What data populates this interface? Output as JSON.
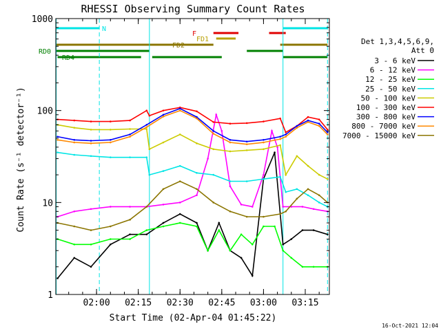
{
  "chart_data": {
    "type": "line",
    "title": "RHESSI Observing Summary Count Rates",
    "xlabel": "Start Time (02-Apr-04 01:45:22)",
    "ylabel": "Count Rate (s⁻¹ detector⁻¹)",
    "y_scale": "log",
    "ylim": [
      1,
      1000
    ],
    "xlim": [
      "01:45:22",
      "03:23:40"
    ],
    "x_ticks": [
      "02:00",
      "02:15",
      "02:30",
      "02:45",
      "03:00",
      "03:15"
    ],
    "y_ticks": [
      "1",
      "10",
      "100",
      "1000"
    ],
    "detector_info": [
      "Det 1,3,4,5,6,9,",
      "Att 0"
    ],
    "footer_date": "16-Oct-2021 12:04",
    "legend_position": "right",
    "flags": [
      {
        "name": "N",
        "color": "#00e5e5",
        "segments": [
          [
            "01:45:22",
            "02:01:00"
          ],
          [
            "03:07:00",
            "03:23:00"
          ]
        ]
      },
      {
        "name": "F",
        "color": "#e00000",
        "segments": [
          [
            "02:42:00",
            "02:51:00"
          ],
          [
            "03:02:00",
            "03:08:00"
          ]
        ]
      },
      {
        "name": "FD1",
        "color": "#b8a000",
        "segments": [
          [
            "02:43:00",
            "02:50:00"
          ]
        ]
      },
      {
        "name": "FD2",
        "color": "#8b7500",
        "segments": [
          [
            "01:45:22",
            "02:42:00"
          ],
          [
            "03:06:00",
            "03:23:00"
          ]
        ]
      },
      {
        "name": "RD0",
        "color": "#008000",
        "segments": [
          [
            "01:45:22",
            "02:19:00"
          ],
          [
            "02:54:00",
            "03:07:00"
          ]
        ]
      },
      {
        "name": "RD4",
        "color": "#008000",
        "segments": [
          [
            "01:46:00",
            "02:16:00"
          ],
          [
            "02:20:00",
            "02:45:00"
          ],
          [
            "03:07:00",
            "03:23:00"
          ]
        ]
      }
    ],
    "series": [
      {
        "name": "3 - 6 keV",
        "color": "#000000",
        "x": [
          "01:46",
          "01:52",
          "01:58",
          "02:05",
          "02:12",
          "02:18",
          "02:24",
          "02:30",
          "02:36",
          "02:40",
          "02:44",
          "02:48",
          "02:52",
          "02:56",
          "03:00",
          "03:04",
          "03:07",
          "03:10",
          "03:14",
          "03:18",
          "03:23"
        ],
        "values": [
          1.5,
          2.5,
          2.0,
          3.5,
          4.5,
          4.5,
          6.0,
          7.5,
          6.0,
          3.0,
          6.0,
          3.0,
          2.5,
          1.6,
          18,
          35,
          3.5,
          4.0,
          5.0,
          5.0,
          4.5
        ]
      },
      {
        "name": "6 - 12 keV",
        "color": "#ff00ff",
        "x": [
          "01:46",
          "01:52",
          "01:58",
          "02:05",
          "02:12",
          "02:18",
          "02:24",
          "02:30",
          "02:36",
          "02:40",
          "02:43",
          "02:45",
          "02:48",
          "02:52",
          "02:56",
          "03:00",
          "03:03",
          "03:05",
          "03:07",
          "03:10",
          "03:14",
          "03:18",
          "03:23"
        ],
        "values": [
          7.0,
          8.0,
          8.5,
          9.0,
          9.0,
          9.0,
          9.5,
          10,
          12,
          30,
          90,
          60,
          15,
          9.5,
          9.0,
          20,
          60,
          40,
          9.0,
          9.0,
          9.0,
          8.5,
          8.0
        ]
      },
      {
        "name": "12 - 25 keV",
        "color": "#00ff00",
        "x": [
          "01:46",
          "01:52",
          "01:58",
          "02:05",
          "02:12",
          "02:18",
          "02:24",
          "02:30",
          "02:36",
          "02:40",
          "02:44",
          "02:48",
          "02:52",
          "02:56",
          "03:00",
          "03:04",
          "03:07",
          "03:10",
          "03:14",
          "03:18",
          "03:23"
        ],
        "values": [
          4.0,
          3.5,
          3.5,
          4.0,
          4.0,
          5.0,
          5.5,
          6.0,
          5.5,
          3.0,
          5.0,
          3.0,
          4.5,
          3.5,
          5.5,
          5.5,
          3.0,
          2.5,
          2.0,
          2.0,
          2.0
        ]
      },
      {
        "name": "25 - 50 keV",
        "color": "#00e5e5",
        "x": [
          "01:46",
          "01:52",
          "01:58",
          "02:05",
          "02:12",
          "02:18",
          "02:19",
          "02:24",
          "02:30",
          "02:36",
          "02:42",
          "02:48",
          "02:54",
          "03:00",
          "03:06",
          "03:08",
          "03:12",
          "03:16",
          "03:20",
          "03:23"
        ],
        "values": [
          35,
          33,
          32,
          31,
          31,
          31,
          20,
          22,
          25,
          21,
          20,
          17,
          17,
          18,
          19,
          13,
          14,
          12,
          10,
          9
        ]
      },
      {
        "name": "50 - 100 keV",
        "color": "#cccc00",
        "x": [
          "01:46",
          "01:52",
          "01:58",
          "02:05",
          "02:12",
          "02:18",
          "02:19",
          "02:24",
          "02:30",
          "02:36",
          "02:42",
          "02:48",
          "02:54",
          "03:00",
          "03:06",
          "03:08",
          "03:12",
          "03:16",
          "03:20",
          "03:23"
        ],
        "values": [
          70,
          65,
          62,
          62,
          63,
          63,
          38,
          45,
          55,
          44,
          38,
          36,
          37,
          38,
          42,
          20,
          32,
          25,
          20,
          18
        ]
      },
      {
        "name": "100 - 300 keV",
        "color": "#ff0000",
        "x": [
          "01:46",
          "01:52",
          "01:58",
          "02:05",
          "02:12",
          "02:18",
          "02:19",
          "02:24",
          "02:30",
          "02:36",
          "02:42",
          "02:48",
          "02:54",
          "03:00",
          "03:06",
          "03:08",
          "03:12",
          "03:16",
          "03:20",
          "03:23"
        ],
        "values": [
          80,
          78,
          76,
          76,
          78,
          100,
          88,
          100,
          108,
          98,
          75,
          72,
          73,
          76,
          82,
          58,
          68,
          85,
          80,
          62
        ]
      },
      {
        "name": "300 - 800 keV",
        "color": "#0000ff",
        "x": [
          "01:46",
          "01:52",
          "01:58",
          "02:05",
          "02:12",
          "02:18",
          "02:24",
          "02:30",
          "02:36",
          "02:42",
          "02:48",
          "02:54",
          "03:00",
          "03:06",
          "03:08",
          "03:12",
          "03:16",
          "03:20",
          "03:23"
        ],
        "values": [
          52,
          48,
          47,
          48,
          55,
          70,
          90,
          105,
          85,
          60,
          48,
          46,
          48,
          52,
          55,
          68,
          78,
          72,
          58
        ]
      },
      {
        "name": "800 - 7000 keV",
        "color": "#ff8800",
        "x": [
          "01:46",
          "01:52",
          "01:58",
          "02:05",
          "02:12",
          "02:18",
          "02:24",
          "02:30",
          "02:36",
          "02:42",
          "02:48",
          "02:54",
          "03:00",
          "03:06",
          "03:08",
          "03:12",
          "03:16",
          "03:20",
          "03:23"
        ],
        "values": [
          48,
          45,
          44,
          45,
          52,
          66,
          86,
          100,
          82,
          56,
          45,
          43,
          45,
          49,
          52,
          65,
          75,
          68,
          55
        ]
      },
      {
        "name": "7000 - 15000 keV",
        "color": "#8b7500",
        "x": [
          "01:46",
          "01:52",
          "01:58",
          "02:05",
          "02:12",
          "02:18",
          "02:24",
          "02:30",
          "02:36",
          "02:42",
          "02:48",
          "02:54",
          "03:00",
          "03:06",
          "03:08",
          "03:12",
          "03:16",
          "03:20",
          "03:23"
        ],
        "values": [
          6.0,
          5.5,
          5.0,
          5.5,
          6.5,
          9.0,
          14,
          17,
          14,
          10,
          8.0,
          7.0,
          7.0,
          7.5,
          8.0,
          11,
          14,
          12,
          10
        ]
      }
    ]
  }
}
